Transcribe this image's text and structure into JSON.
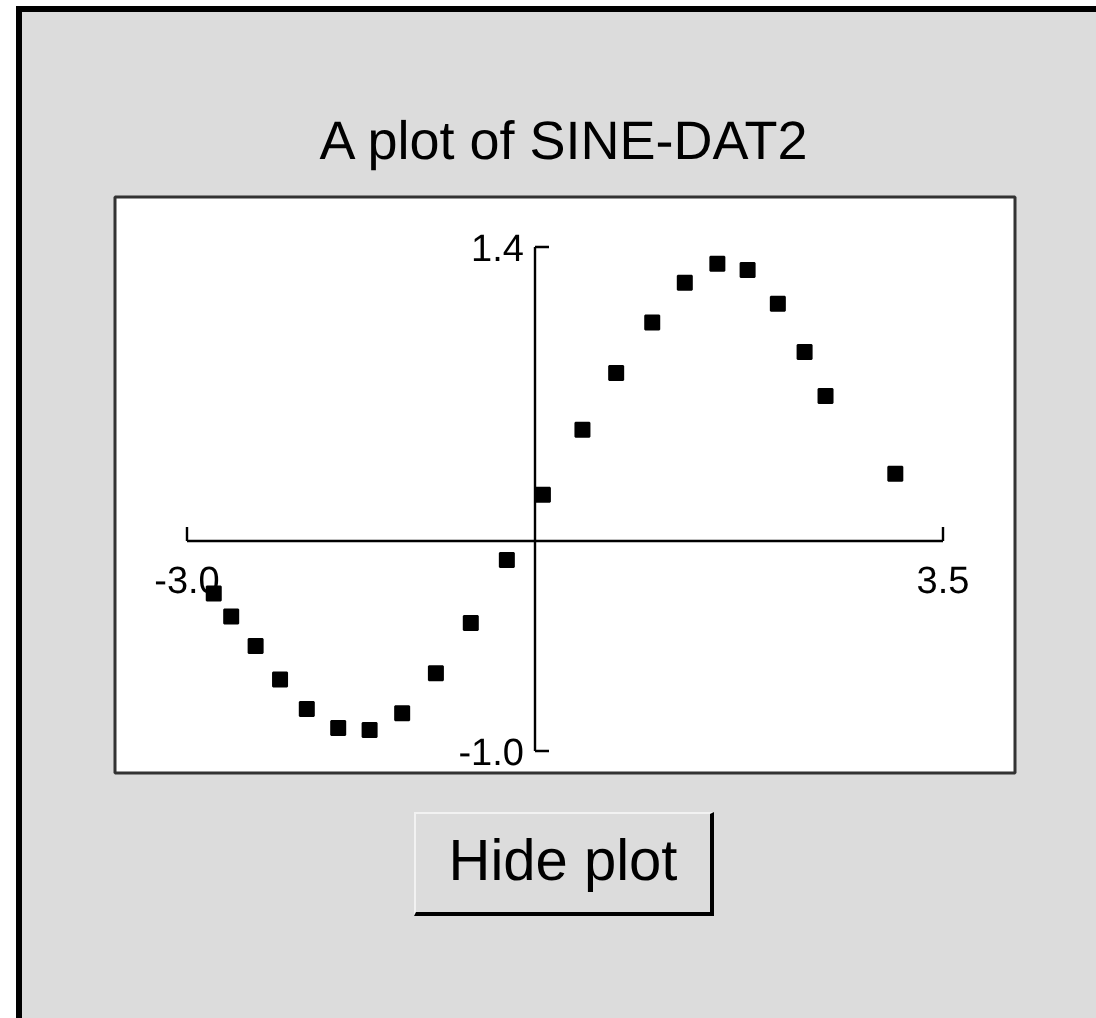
{
  "chart_data": {
    "type": "scatter",
    "title": "A plot of SINE-DAT2",
    "x": [
      -2.77,
      -2.62,
      -2.41,
      -2.2,
      -1.97,
      -1.7,
      -1.43,
      -1.15,
      -0.86,
      -0.56,
      -0.25,
      0.06,
      0.4,
      0.69,
      1.0,
      1.28,
      1.56,
      1.82,
      2.08,
      2.31,
      2.49,
      3.09
    ],
    "values": [
      -0.25,
      -0.36,
      -0.5,
      -0.66,
      -0.8,
      -0.89,
      -0.9,
      -0.82,
      -0.63,
      -0.39,
      -0.09,
      0.22,
      0.53,
      0.8,
      1.04,
      1.23,
      1.32,
      1.29,
      1.13,
      0.9,
      0.69,
      0.32
    ],
    "color": "#000000",
    "marker": "square",
    "xlim": [
      -3.0,
      3.5
    ],
    "xticks": [
      {
        "value": -3.0,
        "label": "-3.0"
      },
      3.5
    ],
    "ylim": [
      -1.0,
      1.4
    ],
    "yticks": [
      {
        "value": -1.0,
        "label": "-1.0"
      },
      1.4
    ],
    "annotations": [
      "Hide plot"
    ]
  }
}
